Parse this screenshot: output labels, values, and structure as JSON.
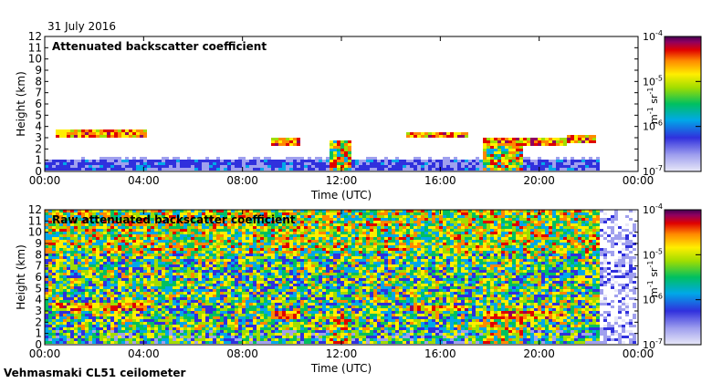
{
  "header": {
    "date": "31 July 2016"
  },
  "footer": {
    "instrument": "Vehmasmaki CL51 ceilometer"
  },
  "colorbar": {
    "unit_m": "m",
    "unit_m_exp": "-1",
    "unit_sr": "sr",
    "unit_sr_exp": "-1",
    "ticks": [
      {
        "base": "10",
        "exp": "-4"
      },
      {
        "base": "10",
        "exp": "-5"
      },
      {
        "base": "10",
        "exp": "-6"
      },
      {
        "base": "10",
        "exp": "-7"
      }
    ]
  },
  "chart_data": [
    {
      "type": "heatmap",
      "title": "Attenuated backscatter coefficient",
      "xlabel": "Time (UTC)",
      "ylabel": "Height (km)",
      "x_tick_labels": [
        "00:00",
        "04:00",
        "08:00",
        "12:00",
        "16:00",
        "20:00",
        "00:00"
      ],
      "y_ticks": [
        0,
        1,
        2,
        3,
        4,
        5,
        6,
        7,
        8,
        9,
        10,
        11,
        12
      ],
      "xlim_hours": [
        0,
        24
      ],
      "ylim_km": [
        0,
        12
      ],
      "color_scale": {
        "min": "1e-7",
        "max": "1e-4",
        "scale": "log"
      },
      "cloud_layers": [
        {
          "start_h": 0.5,
          "end_h": 4.2,
          "height_km": 3.3
        },
        {
          "start_h": 9.2,
          "end_h": 10.4,
          "height_km": 2.5
        },
        {
          "start_h": 14.6,
          "end_h": 17.2,
          "height_km": 3.2
        },
        {
          "start_h": 17.8,
          "end_h": 21.2,
          "height_km": 2.5
        },
        {
          "start_h": 21.2,
          "end_h": 22.4,
          "height_km": 2.8
        }
      ],
      "precipitation_shafts": [
        {
          "start_h": 11.5,
          "end_h": 12.4
        },
        {
          "start_h": 17.8,
          "end_h": 19.4
        }
      ]
    },
    {
      "type": "heatmap",
      "title": "Raw attenuated backscatter coefficient",
      "xlabel": "Time (UTC)",
      "ylabel": "Height (km)",
      "x_tick_labels": [
        "00:00",
        "04:00",
        "08:00",
        "12:00",
        "16:00",
        "20:00",
        "00:00"
      ],
      "y_ticks": [
        0,
        1,
        2,
        3,
        4,
        5,
        6,
        7,
        8,
        9,
        10,
        11,
        12
      ],
      "xlim_hours": [
        0,
        24
      ],
      "ylim_km": [
        0,
        12
      ],
      "color_scale": {
        "min": "1e-7",
        "max": "1e-4",
        "scale": "log"
      },
      "cloud_layers": [
        {
          "start_h": 0.5,
          "end_h": 4.2,
          "height_km": 3.3
        },
        {
          "start_h": 9.2,
          "end_h": 10.4,
          "height_km": 2.5
        },
        {
          "start_h": 14.6,
          "end_h": 17.2,
          "height_km": 3.2
        },
        {
          "start_h": 17.8,
          "end_h": 21.2,
          "height_km": 2.5
        }
      ],
      "precipitation_shafts": [
        {
          "start_h": 11.5,
          "end_h": 12.4
        },
        {
          "start_h": 17.8,
          "end_h": 19.4
        }
      ]
    }
  ]
}
